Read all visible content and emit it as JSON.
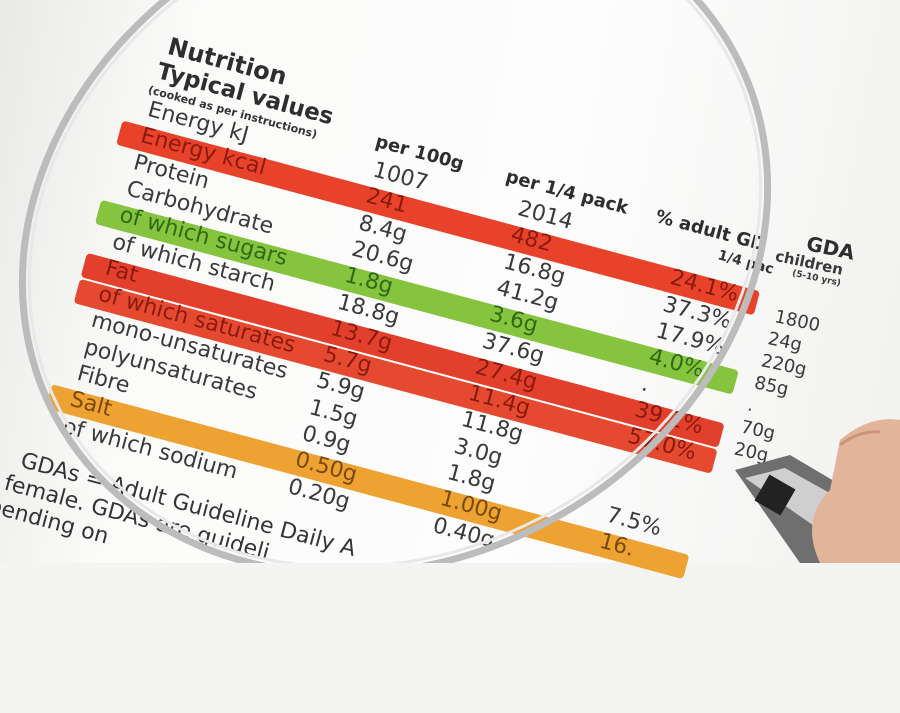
{
  "label": {
    "title": "Nutrition",
    "subtitle": "Typical values",
    "note": "(cooked as per instructions)",
    "columns": [
      "per 100g",
      "per 1/4 pack",
      "% adult GD"
    ],
    "column_sub": "1/4 pac",
    "rows": [
      {
        "name": "Energy kJ",
        "per100": "1007",
        "perQuarter": "2014",
        "pct": "",
        "band": ""
      },
      {
        "name": "Energy kcal",
        "per100": "241",
        "perQuarter": "482",
        "pct": "24.1%",
        "band": "#e8432a"
      },
      {
        "name": "Protein",
        "per100": "8.4g",
        "perQuarter": "16.8g",
        "pct": "37.3%",
        "band": ""
      },
      {
        "name": "Carbohydrate",
        "per100": "20.6g",
        "perQuarter": "41.2g",
        "pct": "17.9%",
        "band": ""
      },
      {
        "name": "of which sugars",
        "per100": "1.8g",
        "perQuarter": "3.6g",
        "pct": "4.0%",
        "band": "#86c440"
      },
      {
        "name": "of which starch",
        "per100": "18.8g",
        "perQuarter": "37.6g",
        "pct": ".",
        "band": ""
      },
      {
        "name": "Fat",
        "per100": "13.7g",
        "perQuarter": "27.4g",
        "pct": "39.1%",
        "band": "#e2402c"
      },
      {
        "name": "of which saturates",
        "per100": "5.7g",
        "perQuarter": "11.4g",
        "pct": "57.0%",
        "band": "#e54a30"
      },
      {
        "name": "mono-unsaturates",
        "per100": "5.9g",
        "perQuarter": "11.8g",
        "pct": "",
        "band": ""
      },
      {
        "name": "polyunsaturates",
        "per100": "1.5g",
        "perQuarter": "3.0g",
        "pct": "",
        "band": ""
      },
      {
        "name": "Fibre",
        "per100": "0.9g",
        "perQuarter": "1.8g",
        "pct": "7.5%",
        "band": ""
      },
      {
        "name": "Salt",
        "per100": "0.50g",
        "perQuarter": "1.00g",
        "pct": "16.",
        "band": "#eda232"
      },
      {
        "name": "of which sodium",
        "per100": "0.20g",
        "perQuarter": "0.40g",
        "pct": "",
        "band": ""
      }
    ],
    "footer": [
      "GDAs = Adult Guideline Daily A",
      "female. GDAs are guideli",
      "pending on"
    ]
  },
  "gda_children": {
    "title": "GDA",
    "subtitle": "children",
    "note": "(5-10 yrs)",
    "values": [
      "1800",
      "24g",
      "220g",
      "85g",
      ".",
      "70g",
      "20g"
    ]
  },
  "colors": {
    "red": "#e8432a",
    "green": "#86c440",
    "orange": "#eda232"
  }
}
